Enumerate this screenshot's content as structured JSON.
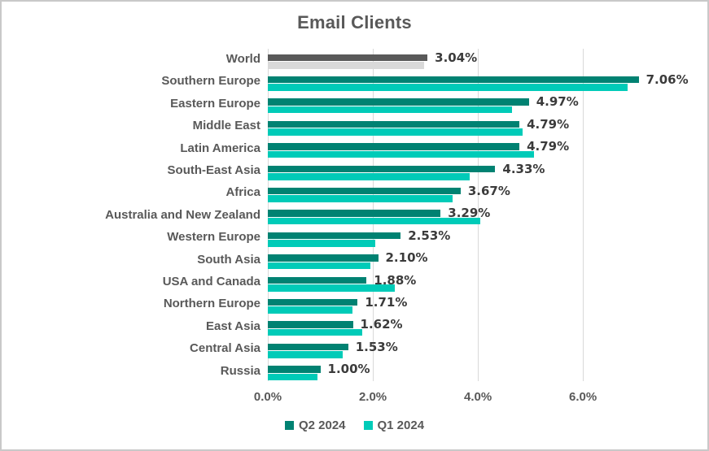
{
  "title": "Email Clients",
  "chart_data": {
    "type": "bar",
    "orientation": "horizontal",
    "title": "Email Clients",
    "categories": [
      "World",
      "Southern Europe",
      "Eastern Europe",
      "Middle East",
      "Latin America",
      "South-East Asia",
      "Africa",
      "Australia and New Zealand",
      "Western Europe",
      "South Asia",
      "USA and Canada",
      "Northern Europe",
      "East Asia",
      "Central Asia",
      "Russia"
    ],
    "series": [
      {
        "name": "Q2 2024",
        "color": "#008272",
        "values": [
          3.04,
          7.06,
          4.97,
          4.79,
          4.79,
          4.33,
          3.67,
          3.29,
          2.53,
          2.1,
          1.88,
          1.71,
          1.62,
          1.53,
          1.0
        ]
      },
      {
        "name": "Q1 2024",
        "color": "#00CBB8",
        "values": [
          2.98,
          6.85,
          4.65,
          4.85,
          5.06,
          3.85,
          3.52,
          4.04,
          2.04,
          1.96,
          2.41,
          1.61,
          1.79,
          1.43,
          0.95
        ]
      }
    ],
    "data_labels": [
      "3.04%",
      "7.06%",
      "4.97%",
      "4.79%",
      "4.79%",
      "4.33%",
      "3.67%",
      "3.29%",
      "2.53%",
      "2.10%",
      "1.88%",
      "1.71%",
      "1.62%",
      "1.53%",
      "1.00%"
    ],
    "data_label_series": "Q2 2024",
    "highlight_category": "World",
    "highlight_colors": {
      "q2": "#595959",
      "q1": "#D9D9D9"
    },
    "x_ticks": [
      {
        "label": "0.0%",
        "value": 0
      },
      {
        "label": "2.0%",
        "value": 2
      },
      {
        "label": "4.0%",
        "value": 4
      },
      {
        "label": "6.0%",
        "value": 6
      }
    ],
    "xlim": [
      0,
      8.26
    ],
    "grid": true,
    "gridline_color": "#D9D9D9",
    "legend_position": "bottom"
  },
  "legend": {
    "items": [
      {
        "label": "Q2 2024",
        "color": "#008272"
      },
      {
        "label": "Q1 2024",
        "color": "#00CBB8"
      }
    ]
  }
}
